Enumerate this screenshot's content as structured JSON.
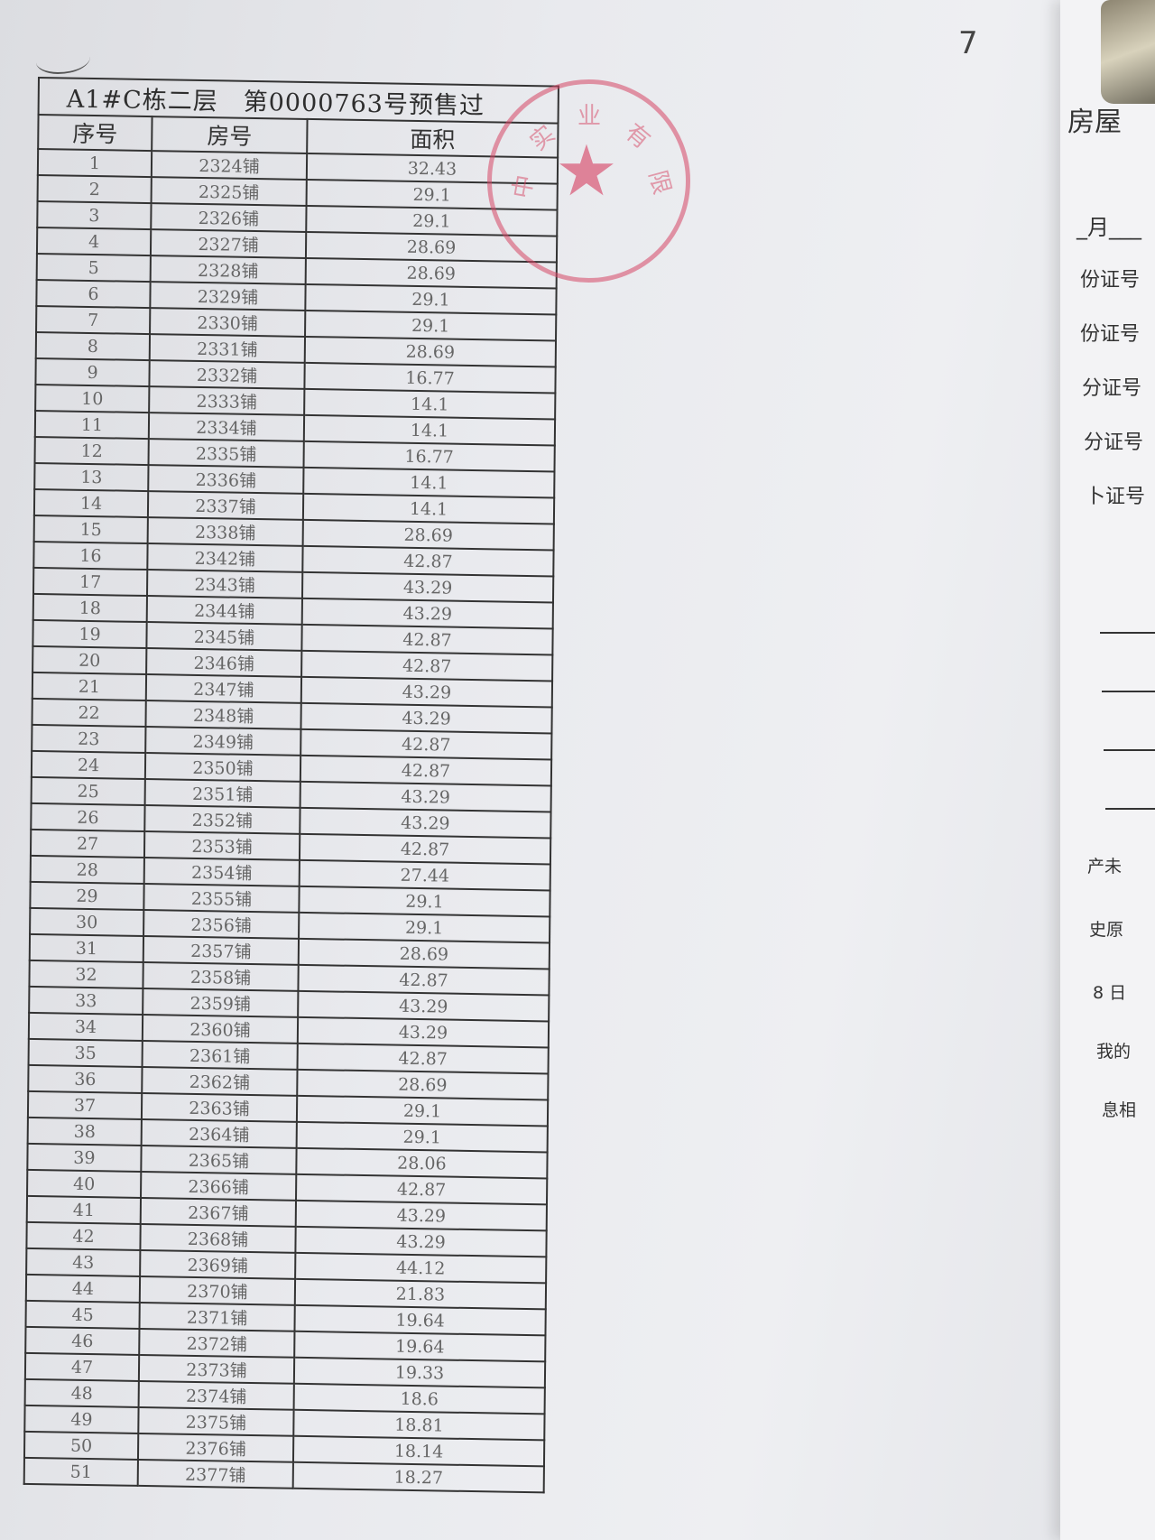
{
  "page_number": "7",
  "table": {
    "title": "A1#C栋二层　第0000763号预售过",
    "headers": [
      "序号",
      "房号",
      "面积"
    ],
    "rows": [
      [
        "1",
        "2324铺",
        "32.43"
      ],
      [
        "2",
        "2325铺",
        "29.1"
      ],
      [
        "3",
        "2326铺",
        "29.1"
      ],
      [
        "4",
        "2327铺",
        "28.69"
      ],
      [
        "5",
        "2328铺",
        "28.69"
      ],
      [
        "6",
        "2329铺",
        "29.1"
      ],
      [
        "7",
        "2330铺",
        "29.1"
      ],
      [
        "8",
        "2331铺",
        "28.69"
      ],
      [
        "9",
        "2332铺",
        "16.77"
      ],
      [
        "10",
        "2333铺",
        "14.1"
      ],
      [
        "11",
        "2334铺",
        "14.1"
      ],
      [
        "12",
        "2335铺",
        "16.77"
      ],
      [
        "13",
        "2336铺",
        "14.1"
      ],
      [
        "14",
        "2337铺",
        "14.1"
      ],
      [
        "15",
        "2338铺",
        "28.69"
      ],
      [
        "16",
        "2342铺",
        "42.87"
      ],
      [
        "17",
        "2343铺",
        "43.29"
      ],
      [
        "18",
        "2344铺",
        "43.29"
      ],
      [
        "19",
        "2345铺",
        "42.87"
      ],
      [
        "20",
        "2346铺",
        "42.87"
      ],
      [
        "21",
        "2347铺",
        "43.29"
      ],
      [
        "22",
        "2348铺",
        "43.29"
      ],
      [
        "23",
        "2349铺",
        "42.87"
      ],
      [
        "24",
        "2350铺",
        "42.87"
      ],
      [
        "25",
        "2351铺",
        "43.29"
      ],
      [
        "26",
        "2352铺",
        "43.29"
      ],
      [
        "27",
        "2353铺",
        "42.87"
      ],
      [
        "28",
        "2354铺",
        "27.44"
      ],
      [
        "29",
        "2355铺",
        "29.1"
      ],
      [
        "30",
        "2356铺",
        "29.1"
      ],
      [
        "31",
        "2357铺",
        "28.69"
      ],
      [
        "32",
        "2358铺",
        "42.87"
      ],
      [
        "33",
        "2359铺",
        "43.29"
      ],
      [
        "34",
        "2360铺",
        "43.29"
      ],
      [
        "35",
        "2361铺",
        "42.87"
      ],
      [
        "36",
        "2362铺",
        "28.69"
      ],
      [
        "37",
        "2363铺",
        "29.1"
      ],
      [
        "38",
        "2364铺",
        "29.1"
      ],
      [
        "39",
        "2365铺",
        "28.06"
      ],
      [
        "40",
        "2366铺",
        "42.87"
      ],
      [
        "41",
        "2367铺",
        "43.29"
      ],
      [
        "42",
        "2368铺",
        "43.29"
      ],
      [
        "43",
        "2369铺",
        "44.12"
      ],
      [
        "44",
        "2370铺",
        "21.83"
      ],
      [
        "45",
        "2371铺",
        "19.64"
      ],
      [
        "46",
        "2372铺",
        "19.64"
      ],
      [
        "47",
        "2373铺",
        "19.33"
      ],
      [
        "48",
        "2374铺",
        "18.6"
      ],
      [
        "49",
        "2375铺",
        "18.81"
      ],
      [
        "50",
        "2376铺",
        "18.14"
      ],
      [
        "51",
        "2377铺",
        "18.27"
      ]
    ]
  },
  "stamp": {
    "text": "…实业有限公司",
    "icon": "star-icon",
    "color": "#d6466a"
  },
  "next_page": {
    "title": "房屋",
    "date_line": "_月___",
    "id_labels": [
      "份证号",
      "份证号",
      "分证号",
      "分证号",
      "卜证号"
    ],
    "fragments": [
      "产未",
      "史原",
      "8 日",
      "我的",
      "息相"
    ]
  }
}
